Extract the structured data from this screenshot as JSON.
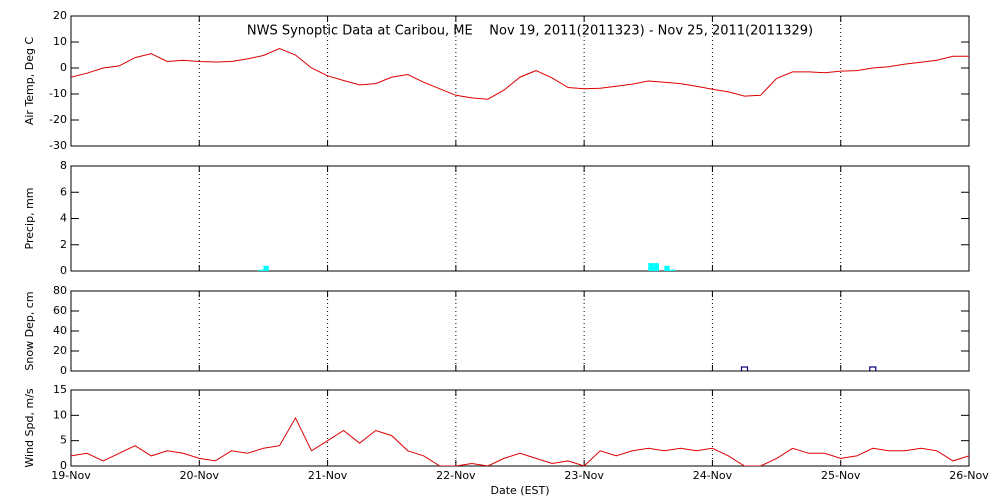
{
  "chart_data": [
    {
      "type": "line",
      "title": "NWS Synoptic Data at Caribou, ME    Nov 19, 2011(2011323) - Nov 25, 2011(2011329)",
      "ylabel": "Air Temp, Deg C",
      "color": "#dd0000",
      "x": [
        0,
        3,
        6,
        9,
        12,
        15,
        18,
        21,
        24,
        27,
        30,
        33,
        36,
        39,
        42,
        45,
        48,
        51,
        54,
        57,
        60,
        63,
        66,
        69,
        72,
        75,
        78,
        81,
        84,
        87,
        90,
        93,
        96,
        99,
        102,
        105,
        108,
        111,
        114,
        117,
        120,
        123,
        126,
        129,
        132,
        135,
        138,
        141,
        144,
        147,
        150,
        153,
        156,
        159,
        162,
        165,
        168
      ],
      "values": [
        -3.5,
        -2,
        0,
        0.8,
        4,
        5.5,
        2.5,
        3,
        2.5,
        2.3,
        2.5,
        3.5,
        4.8,
        7.5,
        5,
        0,
        -3,
        -4.8,
        -6.5,
        -6,
        -3.5,
        -2.5,
        -5.5,
        -8,
        -10.5,
        -11.5,
        -12,
        -8.5,
        -3.5,
        -1,
        -3.8,
        -7.5,
        -8,
        -7.8,
        -7,
        -6.2,
        -5,
        -5.5,
        -6,
        -7,
        -8.2,
        -9.2,
        -10.8,
        -10.5,
        -4,
        -1.5,
        -1.5,
        -1.8,
        -1.2,
        -1,
        0,
        0.5,
        1.5,
        2.2,
        3,
        4.5,
        4.5
      ],
      "xlim": [
        0,
        168
      ],
      "xticks": [
        0,
        24,
        48,
        72,
        96,
        120,
        144,
        168
      ],
      "ylim": [
        -30,
        20
      ],
      "yticks": [
        -30,
        -20,
        -10,
        0,
        10,
        20
      ],
      "grid": true
    },
    {
      "type": "bar",
      "ylabel": "Precip, mm",
      "color": "#00ffff",
      "x": [
        35,
        36,
        108,
        109,
        111,
        112
      ],
      "values": [
        0.1,
        0.4,
        0.6,
        0.6,
        0.4,
        0.1
      ],
      "xlim": [
        0,
        168
      ],
      "xticks": [
        0,
        24,
        48,
        72,
        96,
        120,
        144,
        168
      ],
      "ylim": [
        0,
        8
      ],
      "yticks": [
        0,
        2,
        4,
        6,
        8
      ],
      "grid": true
    },
    {
      "type": "scatter",
      "ylabel": "Snow Dep, cm",
      "color": "#000080",
      "x": [
        126,
        150
      ],
      "values": [
        1,
        1
      ],
      "xlim": [
        0,
        168
      ],
      "xticks": [
        0,
        24,
        48,
        72,
        96,
        120,
        144,
        168
      ],
      "ylim": [
        0,
        80
      ],
      "yticks": [
        0,
        20,
        40,
        60,
        80
      ],
      "grid": true
    },
    {
      "type": "line",
      "ylabel": "Wind Spd, m/s",
      "xlabel": "Date (EST)",
      "color": "#dd0000",
      "x": [
        0,
        3,
        6,
        9,
        12,
        15,
        18,
        21,
        24,
        27,
        30,
        33,
        36,
        39,
        42,
        45,
        48,
        51,
        54,
        57,
        60,
        63,
        66,
        69,
        72,
        75,
        78,
        81,
        84,
        87,
        90,
        93,
        96,
        99,
        102,
        105,
        108,
        111,
        114,
        117,
        120,
        123,
        126,
        129,
        132,
        135,
        138,
        141,
        144,
        147,
        150,
        153,
        156,
        159,
        162,
        165,
        168
      ],
      "values": [
        2,
        2.5,
        1,
        2.5,
        4,
        2,
        3,
        2.5,
        1.5,
        1,
        3,
        2.5,
        3.5,
        4,
        9.5,
        3,
        5,
        7,
        4.5,
        7,
        6,
        3,
        2,
        0,
        0,
        0.5,
        0,
        1.5,
        2.5,
        1.5,
        0.5,
        1,
        0,
        3,
        2,
        3,
        3.5,
        3,
        3.5,
        3,
        3.5,
        2,
        0,
        0,
        1.5,
        3.5,
        2.5,
        2.5,
        1.5,
        2,
        3.5,
        3,
        3,
        3.5,
        3,
        1,
        2
      ],
      "xlim": [
        0,
        168
      ],
      "xticks": [
        {
          "value": 0,
          "label": "19-Nov"
        },
        {
          "value": 24,
          "label": "20-Nov"
        },
        {
          "value": 48,
          "label": "21-Nov"
        },
        {
          "value": 72,
          "label": "22-Nov"
        },
        {
          "value": 96,
          "label": "23-Nov"
        },
        {
          "value": 120,
          "label": "24-Nov"
        },
        {
          "value": 144,
          "label": "25-Nov"
        },
        {
          "value": 168,
          "label": "26-Nov"
        }
      ],
      "ylim": [
        0,
        15
      ],
      "yticks": [
        0,
        5,
        10,
        15
      ],
      "grid": true
    }
  ]
}
